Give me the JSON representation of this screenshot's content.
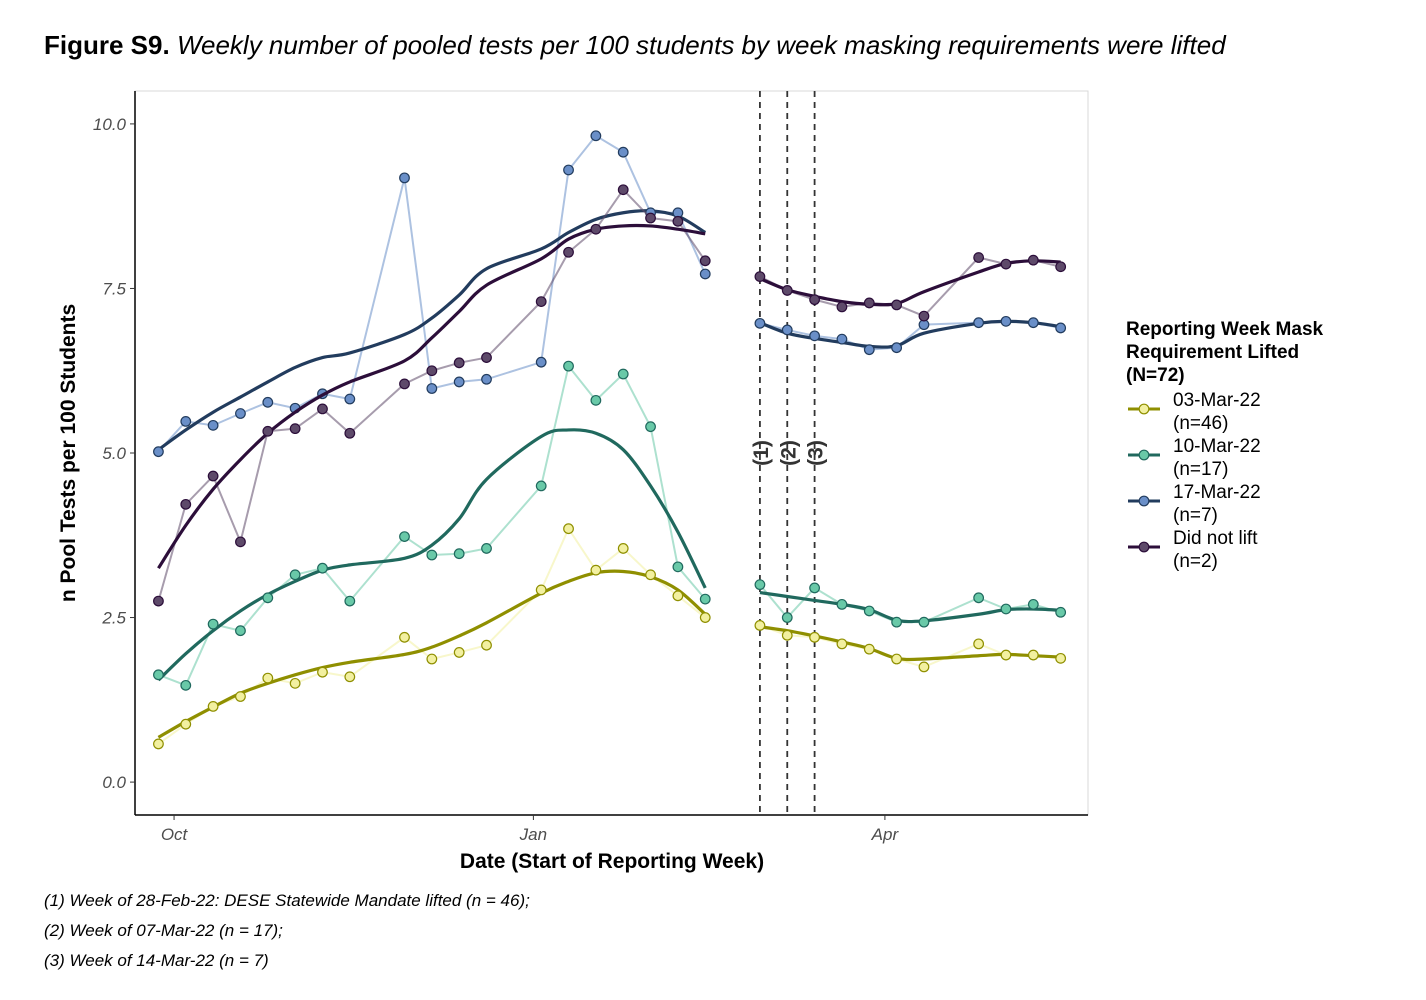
{
  "title": {
    "label": "Figure S9.",
    "text": "Weekly number of pooled tests per 100 students by week masking requirements were lifted"
  },
  "footnotes": [
    "(1) Week of 28-Feb-22: DESE Statewide Mandate lifted (n = 46);",
    "(2) Week of 07-Mar-22 (n = 17);",
    "(3) Week of 14-Mar-22 (n = 7)"
  ],
  "chart_data": {
    "type": "line",
    "title": "",
    "xlabel": "Date (Start of Reporting Week)",
    "ylabel": "n Pool Tests per 100 Students",
    "ylim": [
      -0.5,
      10.5
    ],
    "xlim": [
      "2021-09-21",
      "2022-05-23"
    ],
    "yticks": [
      0.0,
      2.5,
      5.0,
      7.5,
      10.0
    ],
    "ytick_labels": [
      "0.0",
      "2.5",
      "5.0",
      "7.5",
      "10.0"
    ],
    "xticks": [
      "2021-10-01",
      "2022-01-01",
      "2022-04-01"
    ],
    "xtick_labels": [
      "Oct",
      "Jan",
      "Apr"
    ],
    "grid": false,
    "legend_position": "right",
    "legend_title": "Reporting Week Mask\nRequirement Lifted\n(N=72)",
    "x": [
      "2021-09-27",
      "2021-10-04",
      "2021-10-11",
      "2021-10-18",
      "2021-10-25",
      "2021-11-01",
      "2021-11-08",
      "2021-11-15",
      "2021-11-29",
      "2021-12-06",
      "2021-12-13",
      "2021-12-20",
      "2022-01-03",
      "2022-01-10",
      "2022-01-17",
      "2022-01-24",
      "2022-01-31",
      "2022-02-07",
      "2022-02-14",
      "2022-02-28",
      "2022-03-07",
      "2022-03-14",
      "2022-03-21",
      "2022-03-28",
      "2022-04-04",
      "2022-04-11",
      "2022-04-25",
      "2022-05-02",
      "2022-05-09",
      "2022-05-16",
      "2022-05-23"
    ],
    "series": [
      {
        "name": "03-Mar-22\n(n=46)",
        "color": "#8f8f00",
        "point_fill": "#f2f0a0",
        "values": [
          0.58,
          0.88,
          1.15,
          1.3,
          1.58,
          1.5,
          1.67,
          1.6,
          2.2,
          1.87,
          1.97,
          2.08,
          2.92,
          3.85,
          3.22,
          3.55,
          3.15,
          2.83,
          2.5,
          2.38,
          2.23,
          2.2,
          2.1,
          2.02,
          1.87,
          1.75,
          2.1,
          1.93,
          1.93,
          1.88,
          null
        ],
        "smooth": [
          0.68,
          0.92,
          1.14,
          1.35,
          1.5,
          1.63,
          1.74,
          1.82,
          1.94,
          2.05,
          2.22,
          2.42,
          2.87,
          3.05,
          3.18,
          3.2,
          3.12,
          2.92,
          2.55,
          2.36,
          2.3,
          2.22,
          2.13,
          2.03,
          1.88,
          1.87,
          1.92,
          1.94,
          1.92,
          1.9,
          null
        ]
      },
      {
        "name": "10-Mar-22\n(n=17)",
        "color": "#20695e",
        "point_fill": "#69c9a8",
        "values": [
          1.63,
          1.47,
          2.4,
          2.3,
          2.8,
          3.15,
          3.25,
          2.75,
          3.73,
          3.45,
          3.47,
          3.55,
          4.5,
          6.32,
          5.8,
          6.2,
          5.4,
          3.27,
          2.78,
          3.0,
          2.5,
          2.95,
          2.7,
          2.6,
          2.43,
          2.43,
          2.8,
          2.63,
          2.7,
          2.58,
          null
        ],
        "smooth": [
          1.55,
          1.95,
          2.3,
          2.6,
          2.85,
          3.05,
          3.22,
          3.3,
          3.4,
          3.6,
          4.0,
          4.6,
          5.25,
          5.35,
          5.3,
          5.05,
          4.5,
          3.8,
          2.95,
          2.88,
          2.82,
          2.76,
          2.7,
          2.62,
          2.46,
          2.45,
          2.55,
          2.62,
          2.63,
          2.61,
          null
        ]
      },
      {
        "name": "17-Mar-22\n(n=7)",
        "color": "#223c5e",
        "point_fill": "#6a8fc8",
        "values": [
          5.02,
          5.48,
          5.42,
          5.6,
          5.77,
          5.68,
          5.9,
          5.82,
          9.18,
          5.98,
          6.08,
          6.12,
          6.38,
          9.3,
          9.82,
          9.57,
          8.65,
          8.65,
          7.72,
          6.97,
          6.87,
          6.78,
          6.73,
          6.57,
          6.6,
          6.95,
          6.98,
          7.0,
          6.98,
          6.9,
          null
        ],
        "smooth": [
          5.05,
          5.35,
          5.62,
          5.85,
          6.08,
          6.3,
          6.45,
          6.52,
          6.8,
          7.05,
          7.4,
          7.8,
          8.1,
          8.35,
          8.55,
          8.65,
          8.68,
          8.6,
          8.35,
          6.98,
          6.82,
          6.74,
          6.68,
          6.62,
          6.63,
          6.82,
          6.97,
          7.0,
          6.98,
          6.92,
          null
        ]
      },
      {
        "name": "Did not lift\n(n=2)",
        "color": "#2c0e3a",
        "point_fill": "#5e4a6a",
        "values": [
          2.75,
          4.22,
          4.65,
          3.65,
          5.33,
          5.37,
          5.67,
          5.3,
          6.05,
          6.25,
          6.37,
          6.45,
          7.3,
          8.05,
          8.4,
          9.0,
          8.57,
          8.52,
          7.92,
          7.68,
          7.47,
          7.33,
          7.22,
          7.28,
          7.25,
          7.08,
          7.97,
          7.87,
          7.93,
          7.83,
          null
        ],
        "smooth": [
          3.25,
          3.9,
          4.45,
          4.9,
          5.3,
          5.62,
          5.88,
          6.08,
          6.4,
          6.75,
          7.15,
          7.55,
          7.95,
          8.25,
          8.4,
          8.45,
          8.45,
          8.4,
          8.33,
          7.65,
          7.48,
          7.38,
          7.3,
          7.26,
          7.27,
          7.45,
          7.75,
          7.88,
          7.92,
          7.9,
          null
        ]
      }
    ],
    "vlines": [
      {
        "x": "2022-02-28",
        "label": "(1)"
      },
      {
        "x": "2022-03-07",
        "label": "(2)"
      },
      {
        "x": "2022-03-14",
        "label": "(3)"
      }
    ],
    "vline_label_y": 5.0
  }
}
